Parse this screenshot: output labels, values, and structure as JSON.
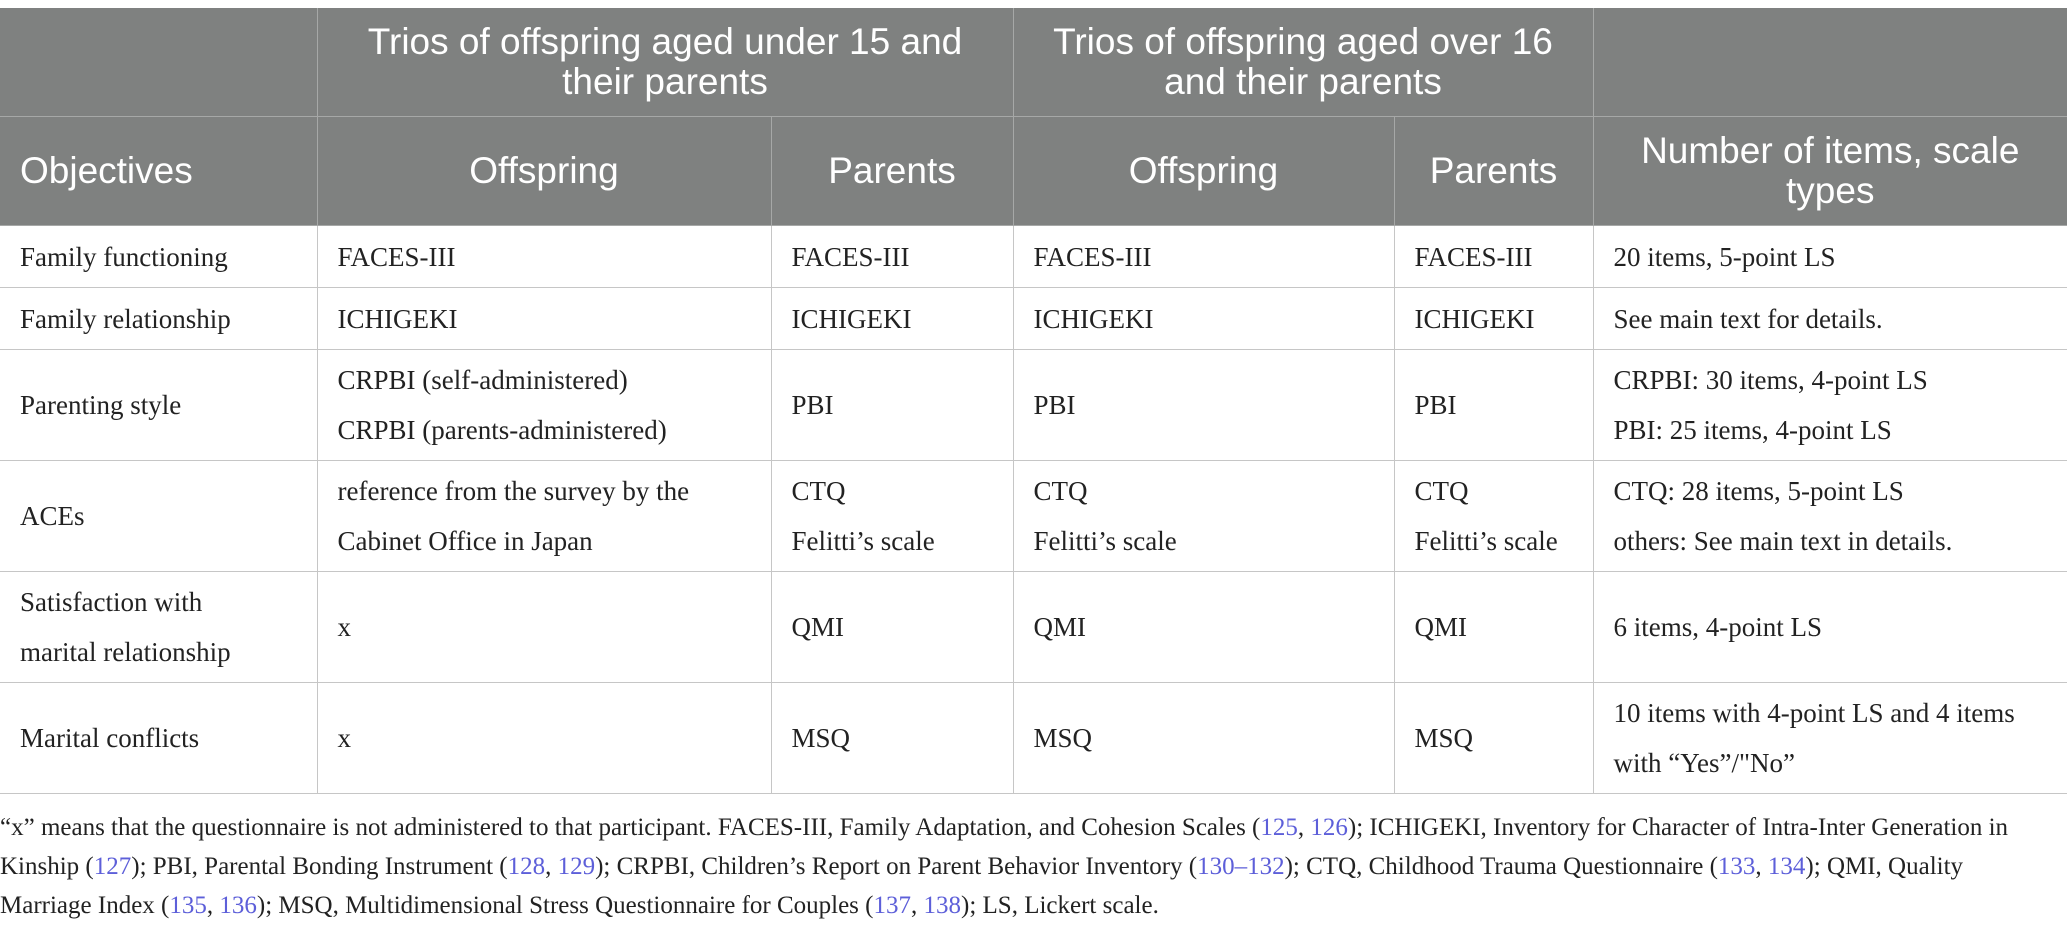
{
  "header": {
    "group1": "Trios of offspring aged under 15 and their parents",
    "group2": "Trios of offspring aged over 16 and their parents",
    "columns": [
      "Objectives",
      "Offspring",
      "Parents",
      "Offspring",
      "Parents",
      "Number of items, scale types"
    ]
  },
  "rows": [
    {
      "objective": [
        "Family functioning"
      ],
      "offspring1": [
        "FACES-III"
      ],
      "parents1": [
        "FACES-III"
      ],
      "offspring2": [
        "FACES-III"
      ],
      "parents2": [
        "FACES-III"
      ],
      "items": [
        "20 items, 5-point LS"
      ]
    },
    {
      "objective": [
        "Family relationship"
      ],
      "offspring1": [
        "ICHIGEKI"
      ],
      "parents1": [
        "ICHIGEKI"
      ],
      "offspring2": [
        "ICHIGEKI"
      ],
      "parents2": [
        "ICHIGEKI"
      ],
      "items": [
        "See main text for details."
      ]
    },
    {
      "objective": [
        "Parenting style"
      ],
      "offspring1": [
        "CRPBI (self-administered)",
        "CRPBI (parents-administered)"
      ],
      "parents1": [
        "PBI"
      ],
      "offspring2": [
        "PBI"
      ],
      "parents2": [
        "PBI"
      ],
      "items": [
        "CRPBI: 30 items, 4-point LS",
        "PBI: 25 items, 4-point LS"
      ]
    },
    {
      "objective": [
        "ACEs"
      ],
      "offspring1": [
        "reference from the survey by the",
        "Cabinet Office in Japan"
      ],
      "parents1": [
        "CTQ",
        "Felitti’s scale"
      ],
      "offspring2": [
        "CTQ",
        "Felitti’s scale"
      ],
      "parents2": [
        "CTQ",
        "Felitti’s scale"
      ],
      "items": [
        "CTQ: 28 items, 5-point LS",
        "others: See main text in details."
      ]
    },
    {
      "objective": [
        "Satisfaction with",
        "marital relationship"
      ],
      "offspring1": [
        "x"
      ],
      "parents1": [
        "QMI"
      ],
      "offspring2": [
        "QMI"
      ],
      "parents2": [
        "QMI"
      ],
      "items": [
        "6 items, 4-point LS"
      ]
    },
    {
      "objective": [
        "Marital conflicts"
      ],
      "offspring1": [
        "x"
      ],
      "parents1": [
        "MSQ"
      ],
      "offspring2": [
        "MSQ"
      ],
      "parents2": [
        "MSQ"
      ],
      "items": [
        "10 items with 4-point LS and 4 items",
        "with “Yes”/\"No”"
      ]
    }
  ],
  "footnote": [
    {
      "t": "“x” means that the questionnaire is not administered to that participant. FACES-III, Family Adaptation, and Cohesion Scales ("
    },
    {
      "t": "125",
      "ref": true
    },
    {
      "t": ", "
    },
    {
      "t": "126",
      "ref": true
    },
    {
      "t": "); ICHIGEKI, Inventory for Character of Intra-Inter Generation in Kinship ("
    },
    {
      "t": "127",
      "ref": true
    },
    {
      "t": "); PBI, Parental Bonding Instrument ("
    },
    {
      "t": "128",
      "ref": true
    },
    {
      "t": ", "
    },
    {
      "t": "129",
      "ref": true
    },
    {
      "t": "); CRPBI, Children’s Report on Parent Behavior Inventory ("
    },
    {
      "t": "130–132",
      "ref": true
    },
    {
      "t": "); CTQ, Childhood Trauma Questionnaire ("
    },
    {
      "t": "133",
      "ref": true
    },
    {
      "t": ", "
    },
    {
      "t": "134",
      "ref": true
    },
    {
      "t": "); QMI, Quality Marriage Index ("
    },
    {
      "t": "135",
      "ref": true
    },
    {
      "t": ", "
    },
    {
      "t": "136",
      "ref": true
    },
    {
      "t": "); MSQ, Multidimensional Stress Questionnaire for Couples ("
    },
    {
      "t": "137",
      "ref": true
    },
    {
      "t": ", "
    },
    {
      "t": "138",
      "ref": true
    },
    {
      "t": "); LS, Lickert scale."
    }
  ],
  "colors": {
    "header_bg": "#7f8180",
    "reference_link": "#5d5fd9"
  }
}
